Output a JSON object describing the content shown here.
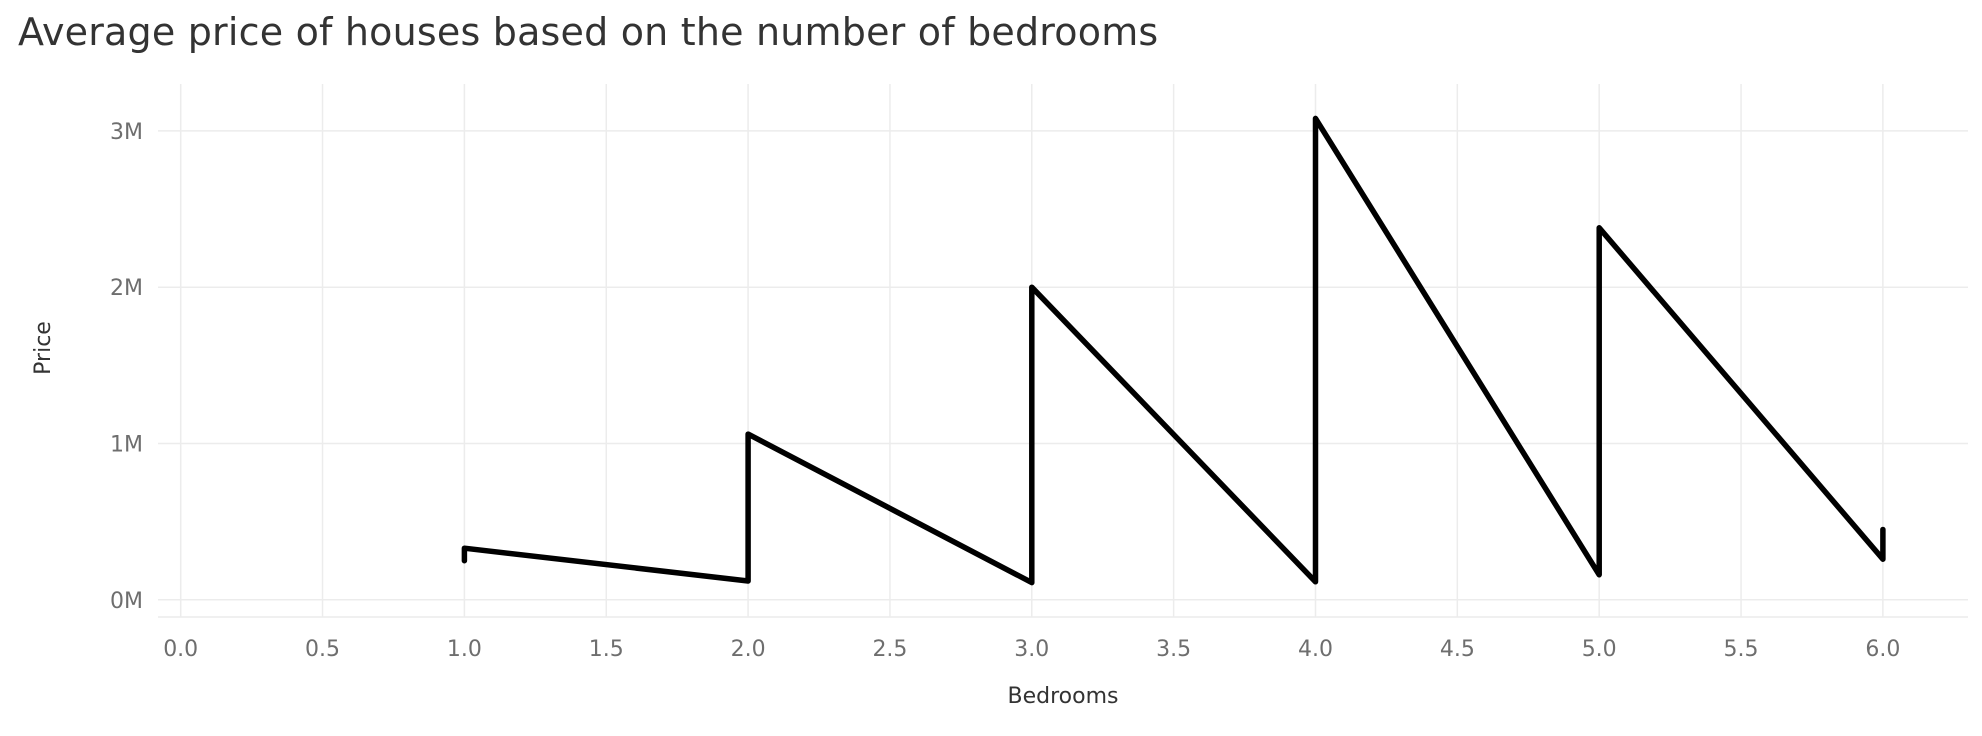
{
  "chart_data": {
    "type": "line",
    "title": "Average price of houses based on the number of bedrooms",
    "xlabel": "Bedrooms",
    "ylabel": "Price",
    "xlim": [
      -0.08,
      6.3
    ],
    "ylim": [
      -110000,
      3300000
    ],
    "x_ticks": [
      0.0,
      0.5,
      1.0,
      1.5,
      2.0,
      2.5,
      3.0,
      3.5,
      4.0,
      4.5,
      5.0,
      5.5,
      6.0
    ],
    "x_tick_labels": [
      "0.0",
      "0.5",
      "1.0",
      "1.5",
      "2.0",
      "2.5",
      "3.0",
      "3.5",
      "4.0",
      "4.5",
      "5.0",
      "5.5",
      "6.0"
    ],
    "y_ticks": [
      0,
      1000000,
      2000000,
      3000000
    ],
    "y_tick_labels": [
      "0M",
      "1M",
      "2M",
      "3M"
    ],
    "grid": true,
    "line_color": "#000000",
    "series": [
      {
        "x": [
          1,
          1,
          2,
          2,
          3,
          3,
          4,
          4,
          5,
          5,
          6,
          6
        ],
        "y": [
          250000,
          330000,
          120000,
          1060000,
          110000,
          2000000,
          115000,
          3080000,
          160000,
          2380000,
          260000,
          450000
        ]
      }
    ]
  }
}
